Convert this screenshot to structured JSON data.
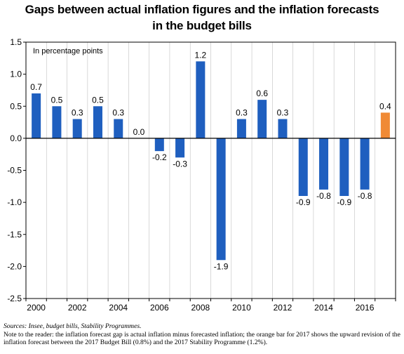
{
  "chart_data": {
    "type": "bar",
    "title": "Gaps between actual inflation figures and the inflation forecasts in the budget bills",
    "title_lines": [
      "Gaps between actual inflation figures and the inflation forecasts",
      "in the budget bills"
    ],
    "unit_label": "In percentage points",
    "categories": [
      "2000",
      "2001",
      "2002",
      "2003",
      "2004",
      "2005",
      "2006",
      "2007",
      "2008",
      "2009",
      "2010",
      "2011",
      "2012",
      "2013",
      "2014",
      "2015",
      "2016",
      "2017"
    ],
    "x_tick_labels": [
      "2000",
      "2002",
      "2004",
      "2006",
      "2008",
      "2010",
      "2012",
      "2014",
      "2016"
    ],
    "values": [
      0.7,
      0.5,
      0.3,
      0.5,
      0.3,
      0.0,
      -0.2,
      -0.3,
      1.2,
      -1.9,
      0.3,
      0.6,
      0.3,
      -0.9,
      -0.8,
      -0.9,
      -0.8,
      0.4
    ],
    "data_labels": [
      "0.7",
      "0.5",
      "0.3",
      "0.5",
      "0.3",
      "0.0",
      "-0.2",
      "-0.3",
      "1.2",
      "-1.9",
      "0.3",
      "0.6",
      "0.3",
      "-0.9",
      "-0.8",
      "-0.9",
      "-0.8",
      "0.4"
    ],
    "bar_colors": [
      "#1f5fbf",
      "#1f5fbf",
      "#1f5fbf",
      "#1f5fbf",
      "#1f5fbf",
      "#1f5fbf",
      "#1f5fbf",
      "#1f5fbf",
      "#1f5fbf",
      "#1f5fbf",
      "#1f5fbf",
      "#1f5fbf",
      "#1f5fbf",
      "#1f5fbf",
      "#1f5fbf",
      "#1f5fbf",
      "#1f5fbf",
      "#f08a35"
    ],
    "ylim": [
      -2.5,
      1.5
    ],
    "y_tick_values": [
      1.5,
      1.0,
      0.5,
      0.0,
      -0.5,
      -1.0,
      -1.5,
      -2.0,
      -2.5
    ],
    "y_tick_labels": [
      "1.5",
      "1.0",
      "0.5",
      "0.0",
      "-0.5",
      "-1.0",
      "-1.5",
      "-2.0",
      "-2.5"
    ],
    "xlabel": "",
    "ylabel": "",
    "grid": "vertical",
    "legend": "none"
  },
  "footer": {
    "sources": "Sources: Insee, budget bills, Stability Programmes.",
    "note": "Note to the reader: the inflation forecast gap is actual inflation minus forecasted inflation; the orange bar for 2017 shows the upward revision of the inflation forecast between the 2017 Budget Bill (0.8%) and the 2017 Stability Programme (1.2%)."
  },
  "colors": {
    "primary_bar": "#1f5fbf",
    "highlight_bar": "#f08a35",
    "grid": "#c0c0c0",
    "axis": "#000000"
  }
}
